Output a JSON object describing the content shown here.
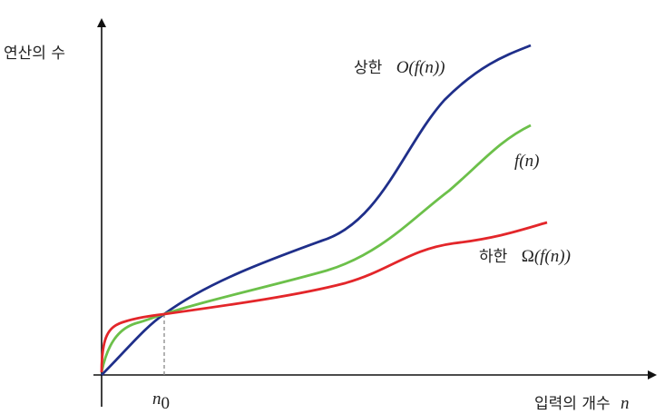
{
  "diagram": {
    "y_axis_label": "연산의 수",
    "x_axis_label_text": "입력의 개수",
    "x_axis_var": "n",
    "n0_label": "n",
    "n0_sub": "0",
    "upper": {
      "text": "상한",
      "symbol": "O",
      "arg": "(f(n))",
      "color": "#1f2f8a"
    },
    "middle": {
      "label": "f(n)",
      "color": "#6cc04a"
    },
    "lower": {
      "text": "하한",
      "symbol": "Ω",
      "arg": "(f(n))",
      "color": "#e3262a"
    },
    "axis_color": "#111111",
    "guide_color": "#888888"
  }
}
